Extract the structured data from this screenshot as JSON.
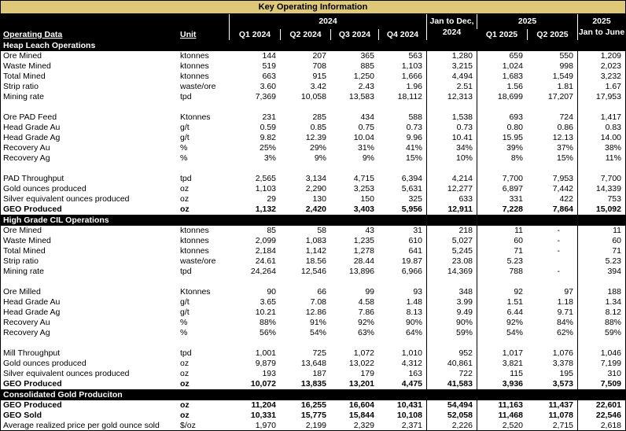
{
  "title": "Key Operating Information",
  "colors": {
    "band": "#dfc877",
    "header_bg": "#000000",
    "body_bg": "#ffffff"
  },
  "header": {
    "operating_data": "Operating Data",
    "unit": "Unit",
    "group_2024": "2024",
    "group_2025": "2025",
    "jan_dec_line1": "Jan to Dec,",
    "jan_dec_line2": "2024",
    "last_line1": "2025",
    "last_line2": "Jan to June",
    "quarters_2024": [
      "Q1 2024",
      "Q2 2024",
      "Q3 2024",
      "Q4 2024"
    ],
    "quarters_2025": [
      "Q1 2025",
      "Q2 2025"
    ]
  },
  "sections": [
    {
      "name": "Heap Leach Operations",
      "rows": [
        {
          "label": "Ore Mined",
          "unit": "ktonnes",
          "values": [
            "144",
            "207",
            "365",
            "563",
            "1,280",
            "659",
            "550",
            "1,209"
          ],
          "bold": false
        },
        {
          "label": "Waste Mined",
          "unit": "ktonnes",
          "values": [
            "519",
            "708",
            "885",
            "1,103",
            "3,215",
            "1,024",
            "998",
            "2,023"
          ],
          "bold": false
        },
        {
          "label": "Total Mined",
          "unit": "ktonnes",
          "values": [
            "663",
            "915",
            "1,250",
            "1,666",
            "4,494",
            "1,683",
            "1,549",
            "3,232"
          ],
          "bold": false
        },
        {
          "label": "Strip ratio",
          "unit": "waste/ore",
          "values": [
            "3.60",
            "3.42",
            "2.43",
            "1.96",
            "2.51",
            "1.56",
            "1.81",
            "1.67"
          ],
          "bold": false
        },
        {
          "label": "Mining rate",
          "unit": "tpd",
          "values": [
            "7,369",
            "10,058",
            "13,583",
            "18,112",
            "12,313",
            "18,699",
            "17,207",
            "17,953"
          ],
          "bold": false
        },
        {
          "label": "",
          "unit": "",
          "values": [
            "",
            "",
            "",
            "",
            "",
            "",
            "",
            ""
          ],
          "bold": false
        },
        {
          "label": "Ore PAD Feed",
          "unit": "Ktonnes",
          "values": [
            "231",
            "285",
            "434",
            "588",
            "1,538",
            "693",
            "724",
            "1,417"
          ],
          "bold": false
        },
        {
          "label": "Head Grade Au",
          "unit": "g/t",
          "values": [
            "0.59",
            "0.85",
            "0.75",
            "0.73",
            "0.73",
            "0.80",
            "0.86",
            "0.83"
          ],
          "bold": false
        },
        {
          "label": "Head Grade Ag",
          "unit": "g/t",
          "values": [
            "9.82",
            "12.39",
            "10.04",
            "9.96",
            "10.41",
            "15.95",
            "12.13",
            "14.00"
          ],
          "bold": false
        },
        {
          "label": "Recovery Au",
          "unit": "%",
          "values": [
            "25%",
            "29%",
            "31%",
            "41%",
            "34%",
            "39%",
            "37%",
            "38%"
          ],
          "bold": false
        },
        {
          "label": "Recovery Ag",
          "unit": "%",
          "values": [
            "3%",
            "9%",
            "9%",
            "15%",
            "10%",
            "8%",
            "15%",
            "11%"
          ],
          "bold": false
        },
        {
          "label": "",
          "unit": "",
          "values": [
            "",
            "",
            "",
            "",
            "",
            "",
            "",
            ""
          ],
          "bold": false
        },
        {
          "label": "PAD Throughput",
          "unit": "tpd",
          "values": [
            "2,565",
            "3,134",
            "4,715",
            "6,394",
            "4,214",
            "7,700",
            "7,953",
            "7,700"
          ],
          "bold": false
        },
        {
          "label": "Gold ounces produced",
          "unit": "oz",
          "values": [
            "1,103",
            "2,290",
            "3,253",
            "5,631",
            "12,277",
            "6,897",
            "7,442",
            "14,339"
          ],
          "bold": false
        },
        {
          "label": "Silver equivalent ounces produced",
          "unit": "oz",
          "values": [
            "29",
            "130",
            "150",
            "325",
            "633",
            "331",
            "422",
            "753"
          ],
          "bold": false
        },
        {
          "label": "GEO Produced",
          "unit": "oz",
          "values": [
            "1,132",
            "2,420",
            "3,403",
            "5,956",
            "12,911",
            "7,228",
            "7,864",
            "15,092"
          ],
          "bold": true
        }
      ]
    },
    {
      "name": "High Grade CIL Operations",
      "rows": [
        {
          "label": "Ore Mined",
          "unit": "ktonnes",
          "values": [
            "85",
            "58",
            "43",
            "31",
            "218",
            "11",
            "-",
            "11"
          ],
          "bold": false
        },
        {
          "label": "Waste Mined",
          "unit": "ktonnes",
          "values": [
            "2,099",
            "1,083",
            "1,235",
            "610",
            "5,027",
            "60",
            "-",
            "60"
          ],
          "bold": false
        },
        {
          "label": "Total Mined",
          "unit": "ktonnes",
          "values": [
            "2,184",
            "1,142",
            "1,278",
            "641",
            "5,245",
            "71",
            "-",
            "71"
          ],
          "bold": false
        },
        {
          "label": "Strip ratio",
          "unit": "waste/ore",
          "values": [
            "24.61",
            "18.56",
            "28.44",
            "19.87",
            "23.08",
            "5.23",
            "",
            "5.23"
          ],
          "bold": false
        },
        {
          "label": "Mining rate",
          "unit": "tpd",
          "values": [
            "24,264",
            "12,546",
            "13,896",
            "6,966",
            "14,369",
            "788",
            "-",
            "394"
          ],
          "bold": false
        },
        {
          "label": "",
          "unit": "",
          "values": [
            "",
            "",
            "",
            "",
            "",
            "",
            "",
            ""
          ],
          "bold": false
        },
        {
          "label": "Ore Milled",
          "unit": "Ktonnes",
          "values": [
            "90",
            "66",
            "99",
            "93",
            "348",
            "92",
            "97",
            "188"
          ],
          "bold": false
        },
        {
          "label": "Head Grade Au",
          "unit": "g/t",
          "values": [
            "3.65",
            "7.08",
            "4.58",
            "1.48",
            "3.99",
            "1.51",
            "1.18",
            "1.34"
          ],
          "bold": false
        },
        {
          "label": "Head Grade Ag",
          "unit": "g/t",
          "values": [
            "10.21",
            "12.86",
            "7.86",
            "8.13",
            "9.49",
            "6.44",
            "9.71",
            "8.12"
          ],
          "bold": false
        },
        {
          "label": "Recovery Au",
          "unit": "%",
          "values": [
            "88%",
            "91%",
            "92%",
            "90%",
            "90%",
            "92%",
            "84%",
            "88%"
          ],
          "bold": false
        },
        {
          "label": "Recovery Ag",
          "unit": "%",
          "values": [
            "56%",
            "54%",
            "63%",
            "64%",
            "59%",
            "54%",
            "62%",
            "59%"
          ],
          "bold": false
        },
        {
          "label": "",
          "unit": "",
          "values": [
            "",
            "",
            "",
            "",
            "",
            "",
            "",
            ""
          ],
          "bold": false
        },
        {
          "label": "Mill Throughput",
          "unit": "tpd",
          "values": [
            "1,001",
            "725",
            "1,072",
            "1,010",
            "952",
            "1,017",
            "1,076",
            "1,046"
          ],
          "bold": false
        },
        {
          "label": "Gold ounces produced",
          "unit": "oz",
          "values": [
            "9,879",
            "13,648",
            "13,022",
            "4,312",
            "40,861",
            "3,821",
            "3,378",
            "7,199"
          ],
          "bold": false
        },
        {
          "label": "Silver equivalent ounces produced",
          "unit": "oz",
          "values": [
            "193",
            "187",
            "179",
            "163",
            "722",
            "115",
            "195",
            "310"
          ],
          "bold": false
        },
        {
          "label": "GEO Produced",
          "unit": "oz",
          "values": [
            "10,072",
            "13,835",
            "13,201",
            "4,475",
            "41,583",
            "3,936",
            "3,573",
            "7,509"
          ],
          "bold": true
        }
      ]
    },
    {
      "name": "Consolidated Gold Produciton",
      "rows": [
        {
          "label": "GEO Produced",
          "unit": "oz",
          "values": [
            "11,204",
            "16,255",
            "16,604",
            "10,431",
            "54,494",
            "11,163",
            "11,437",
            "22,601"
          ],
          "bold": true
        },
        {
          "label": "GEO Sold",
          "unit": "oz",
          "values": [
            "10,331",
            "15,775",
            "15,844",
            "10,108",
            "52,058",
            "11,468",
            "11,078",
            "22,546"
          ],
          "bold": true
        },
        {
          "label": "Average realized price per gold ounce sold",
          "unit": "$/oz",
          "values": [
            "1,970",
            "2,199",
            "2,329",
            "2,371",
            "2,226",
            "2,520",
            "2,715",
            "2,618"
          ],
          "bold": false
        }
      ]
    }
  ]
}
